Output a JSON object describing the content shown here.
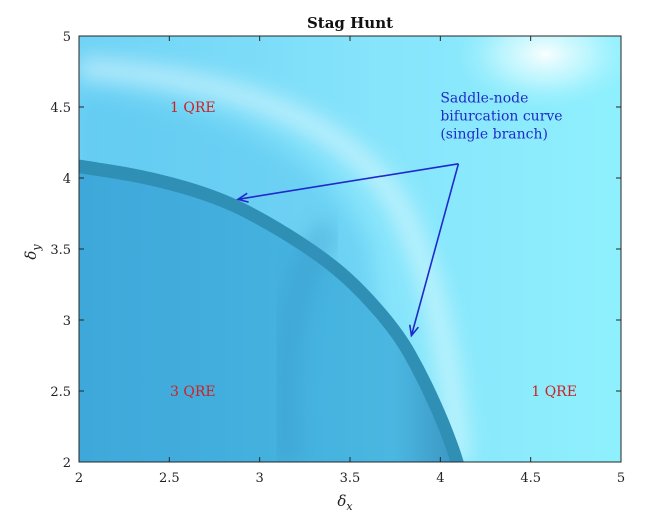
{
  "chart_data": {
    "type": "heatmap",
    "title": "Stag Hunt",
    "xlabel": "δ",
    "xlabel_sub": "x",
    "ylabel": "δ",
    "ylabel_sub": "y",
    "xlim": [
      2,
      5
    ],
    "ylim": [
      2,
      5
    ],
    "x_ticks": [
      2,
      2.5,
      3,
      3.5,
      4,
      4.5,
      5
    ],
    "x_tick_labels": [
      "2",
      "2.5",
      "3",
      "3.5",
      "4",
      "4.5",
      "5"
    ],
    "y_ticks": [
      2,
      2.5,
      3,
      3.5,
      4,
      4.5,
      5
    ],
    "y_tick_labels": [
      "2",
      "2.5",
      "3",
      "3.5",
      "4",
      "4.5",
      "5"
    ],
    "grid": false,
    "bifurcation_curve": {
      "x": [
        2.0,
        2.4,
        2.8,
        3.1,
        3.4,
        3.6,
        3.8,
        3.92,
        4.03,
        4.1,
        4.13
      ],
      "y": [
        4.13,
        4.05,
        3.9,
        3.7,
        3.45,
        3.22,
        2.92,
        2.65,
        2.35,
        2.12,
        2.0
      ]
    },
    "regions": [
      {
        "label": "1 QRE",
        "x": 2.63,
        "y": 4.5
      },
      {
        "label": "3 QRE",
        "x": 2.63,
        "y": 2.5
      },
      {
        "label": "1 QRE",
        "x": 4.63,
        "y": 2.5
      }
    ],
    "annotation": {
      "lines": [
        "Saddle-node",
        "bifurcation curve",
        "(single branch)"
      ],
      "text_x": 4.0,
      "text_y": 4.53,
      "arrow_origin": [
        4.1,
        4.1
      ],
      "arrow_targets": [
        [
          2.88,
          3.85
        ],
        [
          3.84,
          2.89
        ]
      ]
    },
    "colors": {
      "region_label": "#cc2222",
      "annotation": "#1f2acc",
      "background_light": "#7fe6fb",
      "background_mid": "#66d4f6",
      "inner_region": "#3aa6d6",
      "curve_band": "#2f8fb4"
    }
  }
}
